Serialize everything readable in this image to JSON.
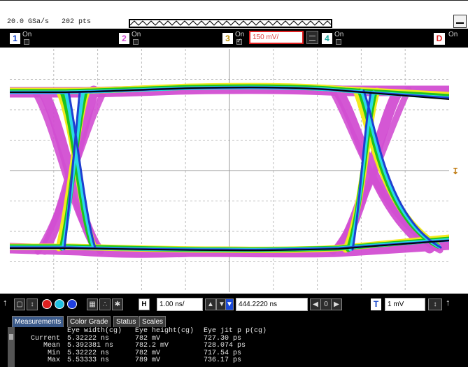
{
  "header": {
    "sample_rate": "20.0 GSa/s",
    "points": "202 pts"
  },
  "channels": [
    {
      "number": "1",
      "state": "On",
      "color": "#ffffff",
      "checked": false
    },
    {
      "number": "2",
      "state": "On",
      "color": "#ff66ff",
      "checked": false
    },
    {
      "number": "3",
      "state": "On",
      "color": "#f0d020",
      "checked": true,
      "scale": "150 mV/"
    },
    {
      "number": "4",
      "state": "On",
      "color": "#40e0d0",
      "checked": false
    }
  ],
  "channel_d": {
    "label": "D",
    "state": "On"
  },
  "toolbar": {
    "timebase": "1.00 ns/",
    "delay": "444.2220 ns",
    "trigger_label": "T",
    "trigger_level": "1 mV",
    "display_colors": [
      "#e02020",
      "#20c0e0",
      "#2040e0"
    ]
  },
  "tabs": [
    {
      "label": "Measurements",
      "active": true
    },
    {
      "label": "Color Grade",
      "active": false
    },
    {
      "label": "Status",
      "active": false
    },
    {
      "label": "Scales",
      "active": false
    }
  ],
  "measurements": {
    "columns": [
      "Eye width(cg)",
      "Eye height(cg)",
      "Eye jit p p(cg)"
    ],
    "rows": [
      {
        "label": "Current",
        "values": [
          "5.32222 ns",
          "782 mV",
          "727.30 ps"
        ]
      },
      {
        "label": "Mean",
        "values": [
          "5.392381 ns",
          "782.2 mV",
          "728.074 ps"
        ]
      },
      {
        "label": "Min",
        "values": [
          "5.32222 ns",
          "782 mV",
          "717.54 ps"
        ]
      },
      {
        "label": "Max",
        "values": [
          "5.53333 ns",
          "789 mV",
          "736.17 ps"
        ]
      }
    ]
  },
  "colors": {
    "grade_outer": "#d24fd2",
    "grade_yellow": "#f2ea1c",
    "grade_green": "#1ec31e",
    "grade_cyan": "#2ad8e8",
    "grade_blue": "#1f3fd0",
    "grade_core": "#050505",
    "trigger_marker": "#c07a10"
  }
}
